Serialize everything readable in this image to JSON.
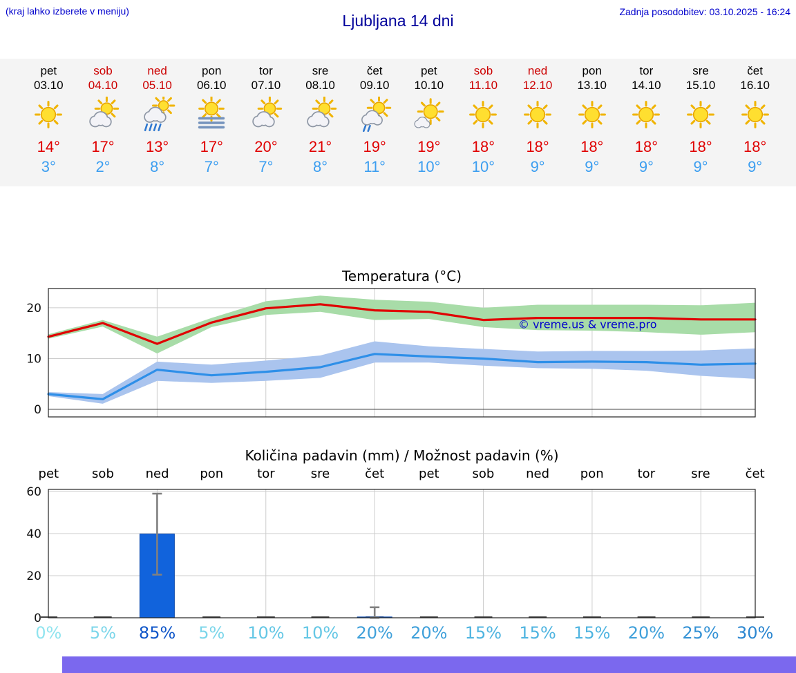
{
  "header": {
    "hint": "(kraj lahko izberete v meniju)",
    "title": "Ljubljana 14 dni",
    "updated": "Zadnja posodobitev: 03.10.2025 - 16:24"
  },
  "colors": {
    "weekday": "#000000",
    "weekend": "#cc0000",
    "max_temp": "#e00000",
    "min_temp": "#3c9ef0",
    "link_blue": "#0000cc",
    "strip_background": "#f4f4f4",
    "footer_bar": "#7b68ee",
    "watermark_blue": "#0000cc"
  },
  "forecast_days": [
    {
      "name": "pet",
      "date": "03.10",
      "weekend": false,
      "icon": "sunny",
      "tmax": "14°",
      "tmin": "3°"
    },
    {
      "name": "sob",
      "date": "04.10",
      "weekend": true,
      "icon": "partly-cloudy",
      "tmax": "17°",
      "tmin": "2°"
    },
    {
      "name": "ned",
      "date": "05.10",
      "weekend": true,
      "icon": "rain-showers",
      "tmax": "13°",
      "tmin": "8°"
    },
    {
      "name": "pon",
      "date": "06.10",
      "weekend": false,
      "icon": "fog",
      "tmax": "17°",
      "tmin": "7°"
    },
    {
      "name": "tor",
      "date": "07.10",
      "weekend": false,
      "icon": "partly-cloudy",
      "tmax": "20°",
      "tmin": "7°"
    },
    {
      "name": "sre",
      "date": "08.10",
      "weekend": false,
      "icon": "partly-cloudy",
      "tmax": "21°",
      "tmin": "8°"
    },
    {
      "name": "čet",
      "date": "09.10",
      "weekend": false,
      "icon": "light-rain",
      "tmax": "19°",
      "tmin": "11°"
    },
    {
      "name": "pet",
      "date": "10.10",
      "weekend": false,
      "icon": "mostly-sunny",
      "tmax": "19°",
      "tmin": "10°"
    },
    {
      "name": "sob",
      "date": "11.10",
      "weekend": true,
      "icon": "sunny",
      "tmax": "18°",
      "tmin": "10°"
    },
    {
      "name": "ned",
      "date": "12.10",
      "weekend": true,
      "icon": "sunny",
      "tmax": "18°",
      "tmin": "9°"
    },
    {
      "name": "pon",
      "date": "13.10",
      "weekend": false,
      "icon": "sunny",
      "tmax": "18°",
      "tmin": "9°"
    },
    {
      "name": "tor",
      "date": "14.10",
      "weekend": false,
      "icon": "sunny",
      "tmax": "18°",
      "tmin": "9°"
    },
    {
      "name": "sre",
      "date": "15.10",
      "weekend": false,
      "icon": "sunny",
      "tmax": "18°",
      "tmin": "9°"
    },
    {
      "name": "čet",
      "date": "16.10",
      "weekend": false,
      "icon": "sunny",
      "tmax": "18°",
      "tmin": "9°"
    }
  ],
  "chart_data": [
    {
      "type": "line",
      "title": "Temperatura (°C)",
      "x": [
        "pet 03.10",
        "sob 04.10",
        "ned 05.10",
        "pon 06.10",
        "tor 07.10",
        "sre 08.10",
        "čet 09.10",
        "pet 10.10",
        "sob 11.10",
        "ned 12.10",
        "pon 13.10",
        "tor 14.10",
        "sre 15.10",
        "čet 16.10"
      ],
      "ylim": [
        -1.5,
        23.8
      ],
      "yticks": [
        0,
        10,
        20
      ],
      "grid": true,
      "watermark": "© vreme.us & vreme.pro",
      "series": [
        {
          "name": "max-temp",
          "color": "#e00000",
          "values": [
            14.3,
            17,
            12.9,
            17.1,
            19.9,
            20.7,
            19.5,
            19.2,
            17.6,
            18,
            18,
            18,
            17.7,
            17.7
          ]
        },
        {
          "name": "min-temp",
          "color": "#2e8fe8",
          "values": [
            3,
            2,
            7.8,
            6.7,
            7.4,
            8.3,
            10.9,
            10.4,
            10,
            9.3,
            9.4,
            9.3,
            8.8,
            9
          ]
        }
      ],
      "bands": [
        {
          "name": "max-temp-range",
          "color": "#a8dca8",
          "upper": [
            14.8,
            17.6,
            14.3,
            18,
            21.3,
            22.4,
            21.6,
            21.2,
            20,
            20.6,
            20.6,
            20.6,
            20.5,
            21
          ],
          "lower": [
            13.9,
            16.3,
            11,
            16.2,
            18.6,
            19.2,
            17.6,
            17.8,
            16.2,
            15.6,
            15.5,
            15.2,
            14.7,
            15.2
          ]
        },
        {
          "name": "min-temp-range",
          "color": "#aac4ee",
          "upper": [
            3.4,
            3,
            9.4,
            8.8,
            9.6,
            10.6,
            13.4,
            12.4,
            11.9,
            11.4,
            11.5,
            11.5,
            11.6,
            12
          ],
          "lower": [
            2.6,
            1.1,
            5.6,
            5.2,
            5.6,
            6.2,
            9.2,
            9.2,
            8.6,
            8.1,
            8,
            7.6,
            6.6,
            6
          ]
        }
      ]
    },
    {
      "type": "bar",
      "title": "Količina padavin (mm) / Možnost padavin (%)",
      "categories": [
        "pet",
        "sob",
        "ned",
        "pon",
        "tor",
        "sre",
        "čet",
        "pet",
        "sob",
        "ned",
        "pon",
        "tor",
        "sre",
        "čet"
      ],
      "values_mm": [
        0,
        0,
        39.8,
        0,
        0,
        0,
        0.4,
        0,
        0,
        0,
        0,
        0,
        0,
        0
      ],
      "error_bars": [
        null,
        null,
        {
          "low": 20.5,
          "high": 59
        },
        null,
        null,
        null,
        {
          "low": 0,
          "high": 5
        },
        null,
        null,
        null,
        null,
        null,
        null,
        null
      ],
      "probabilities": [
        {
          "label": "0%",
          "color": "#90e4ef"
        },
        {
          "label": "5%",
          "color": "#7cd6ea"
        },
        {
          "label": "85%",
          "color": "#1157c9"
        },
        {
          "label": "5%",
          "color": "#7cd6ea"
        },
        {
          "label": "10%",
          "color": "#64c7e5"
        },
        {
          "label": "10%",
          "color": "#64c7e5"
        },
        {
          "label": "20%",
          "color": "#3fa0da"
        },
        {
          "label": "20%",
          "color": "#3fa0da"
        },
        {
          "label": "15%",
          "color": "#4fb4e0"
        },
        {
          "label": "15%",
          "color": "#4fb4e0"
        },
        {
          "label": "15%",
          "color": "#4fb4e0"
        },
        {
          "label": "20%",
          "color": "#3fa0da"
        },
        {
          "label": "25%",
          "color": "#3492d5"
        },
        {
          "label": "30%",
          "color": "#2b86d0"
        }
      ],
      "ylim": [
        0,
        61
      ],
      "yticks": [
        0,
        20,
        40,
        60
      ],
      "bar_color": "#1163dc",
      "error_bar_color": "#808080",
      "grid": true
    }
  ]
}
